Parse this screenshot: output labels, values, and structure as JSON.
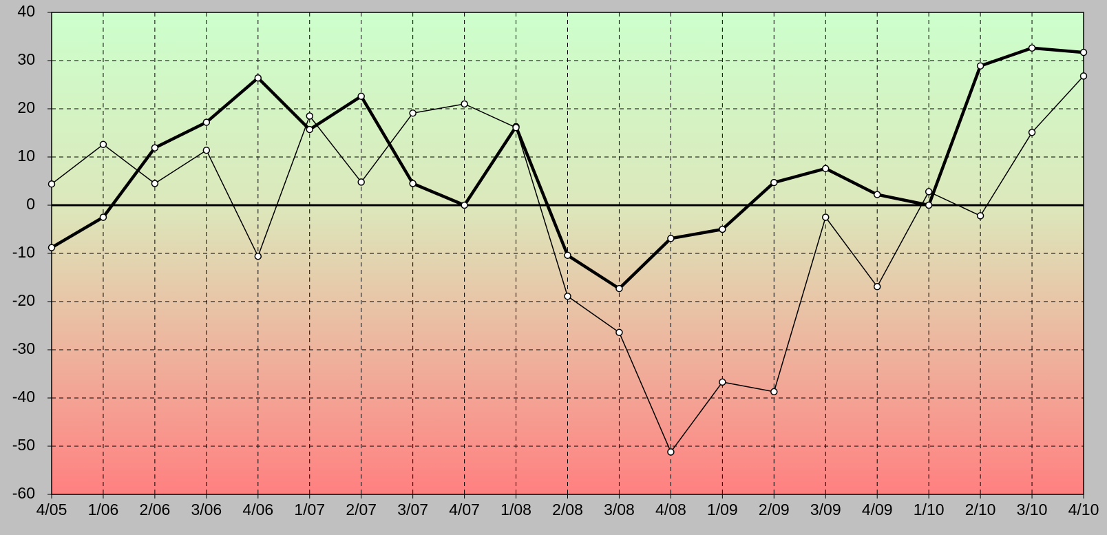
{
  "chart_data": {
    "type": "line",
    "categories": [
      "4/05",
      "1/06",
      "2/06",
      "3/06",
      "4/06",
      "1/07",
      "2/07",
      "3/07",
      "4/07",
      "1/08",
      "2/08",
      "3/08",
      "4/08",
      "1/09",
      "2/09",
      "3/09",
      "4/09",
      "1/10",
      "2/10",
      "3/10",
      "4/10"
    ],
    "series": [
      {
        "color": "#000000",
        "values": [
          -8.8,
          -2.5,
          11.9,
          17.2,
          26.4,
          15.7,
          22.6,
          4.5,
          0,
          16.3,
          -10.4,
          -17.3,
          -6.9,
          -5.0,
          4.7,
          7.6,
          2.2,
          0,
          28.9,
          32.6,
          31.7
        ]
      },
      {
        "color": "#000000",
        "values": [
          4.4,
          12.6,
          4.5,
          11.4,
          -10.6,
          18.5,
          4.8,
          19.1,
          21.0,
          16.1,
          -18.9,
          -26.4,
          -51.2,
          -36.7,
          -38.7,
          -2.5,
          -16.9,
          2.8,
          -2.2,
          15.1,
          26.8
        ]
      }
    ],
    "ylim": [
      -60,
      40
    ],
    "yticks": [
      -60,
      -50,
      -40,
      -30,
      -20,
      -10,
      0,
      10,
      20,
      30,
      40
    ],
    "grid": true
  }
}
